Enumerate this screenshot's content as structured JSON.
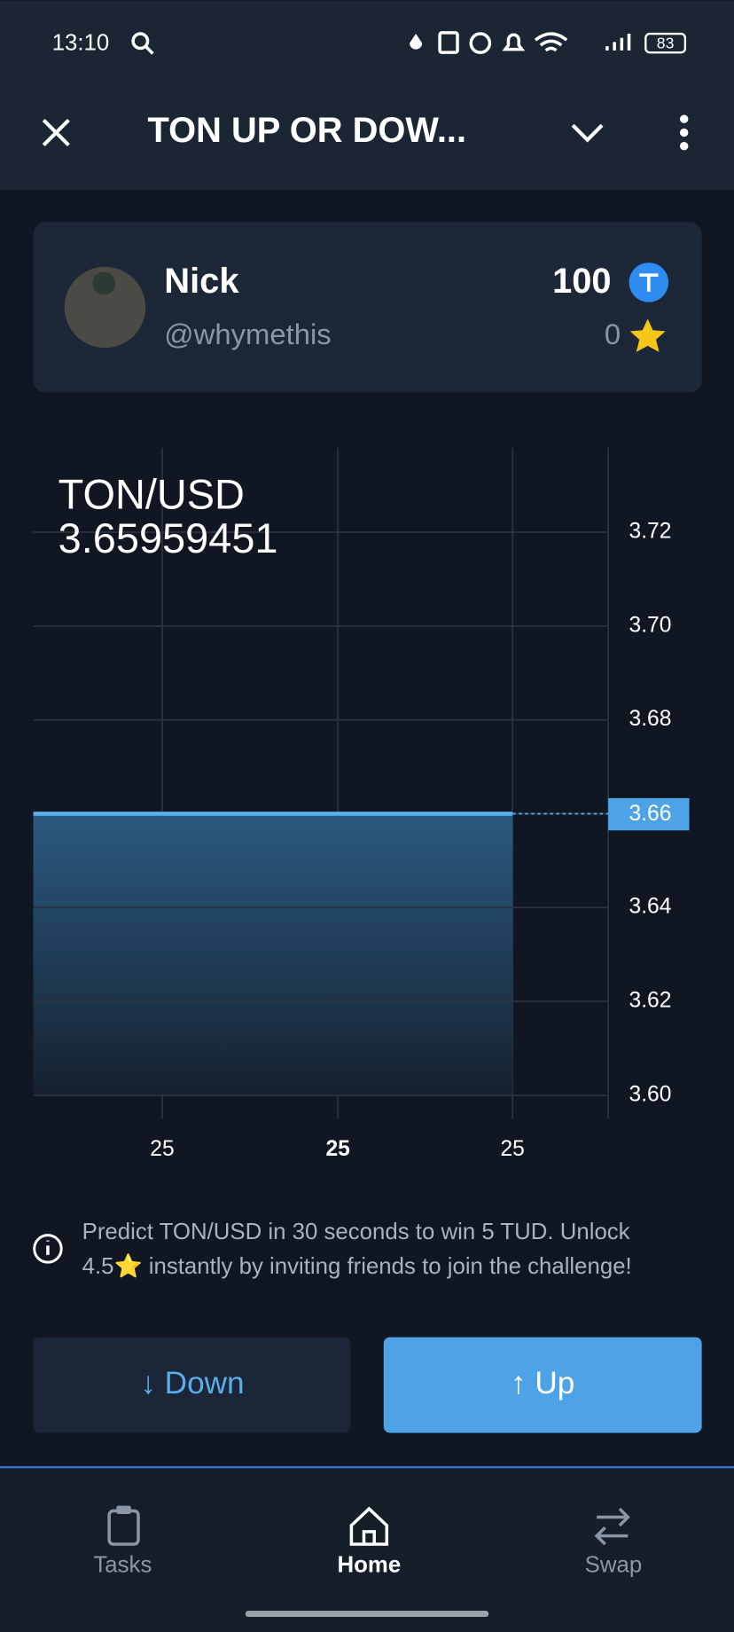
{
  "status_bar": {
    "time": "13:10",
    "battery": "83"
  },
  "header": {
    "title": "TON UP OR DOW..."
  },
  "profile": {
    "name": "Nick",
    "handle": "@whymethis",
    "ton_balance": "100",
    "stars": "0"
  },
  "chart": {
    "type": "area",
    "pair": "TON/USD",
    "price": "3.65959451",
    "x_labels": [
      "25",
      "25",
      "25"
    ],
    "values": [
      3.66,
      3.66
    ],
    "color": "#5aaeea",
    "last_price": 3.66,
    "ylim": [
      3.595,
      3.738
    ],
    "yticks": [
      3.72,
      {
        "value": 3.7,
        "label": "3.70"
      },
      3.68,
      3.66,
      3.64,
      3.62,
      {
        "value": 3.6,
        "label": "3.60"
      }
    ],
    "grid": true
  },
  "info": {
    "line1": "Predict TON/USD in 30 seconds to win 5 TUD. Unlock",
    "line2": "4.5⭐ instantly by inviting friends to join the challenge!"
  },
  "buttons": {
    "down": "↓ Down",
    "up": "↑ Up"
  },
  "nav": {
    "tasks": "Tasks",
    "home": "Home",
    "swap": "Swap"
  }
}
